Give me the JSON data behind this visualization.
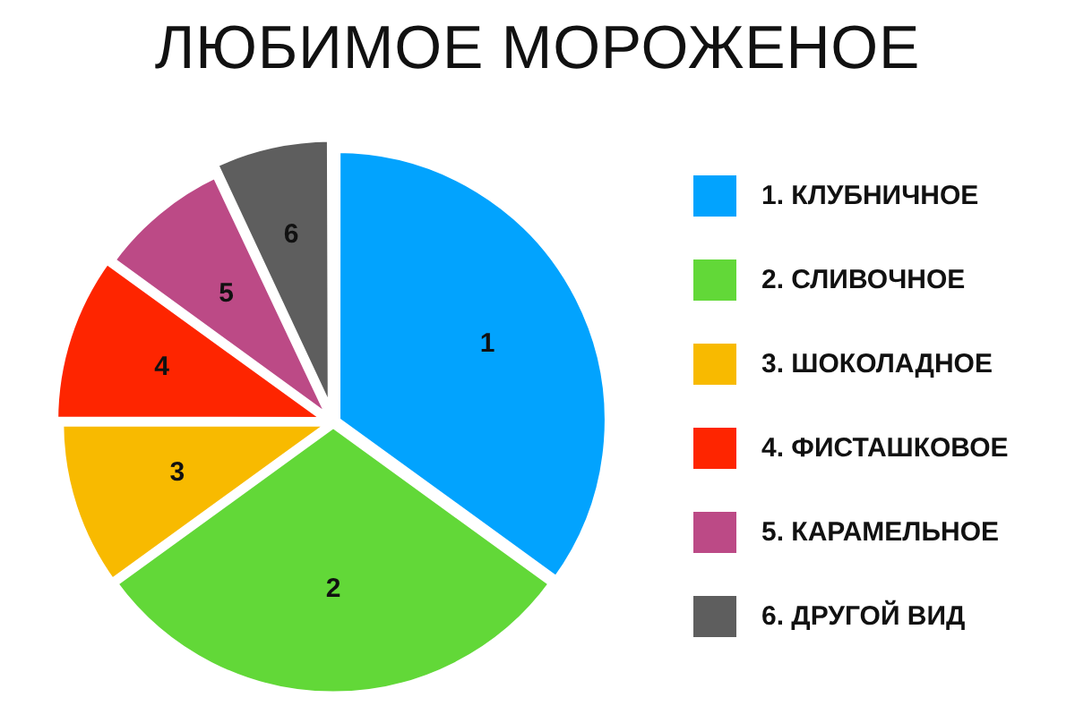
{
  "chart_data": {
    "type": "pie",
    "title": "ЛЮБИМОЕ МОРОЖЕНОЕ",
    "categories": [
      "1. КЛУБНИЧНОЕ",
      "2. СЛИВОЧНОЕ",
      "3. ШОКОЛАДНОЕ",
      "4. ФИСТАШКОВОЕ",
      "5. КАРАМЕЛЬНОЕ",
      "6. ДРУГОЙ ВИД"
    ],
    "values": [
      35,
      30,
      10,
      10,
      8,
      7
    ],
    "colors": [
      "#02a3fe",
      "#62d838",
      "#f8ba00",
      "#fe2500",
      "#bc4a86",
      "#5e5e5e"
    ],
    "annotations": [
      "1",
      "2",
      "3",
      "4",
      "5",
      "6"
    ],
    "legend": "right"
  }
}
